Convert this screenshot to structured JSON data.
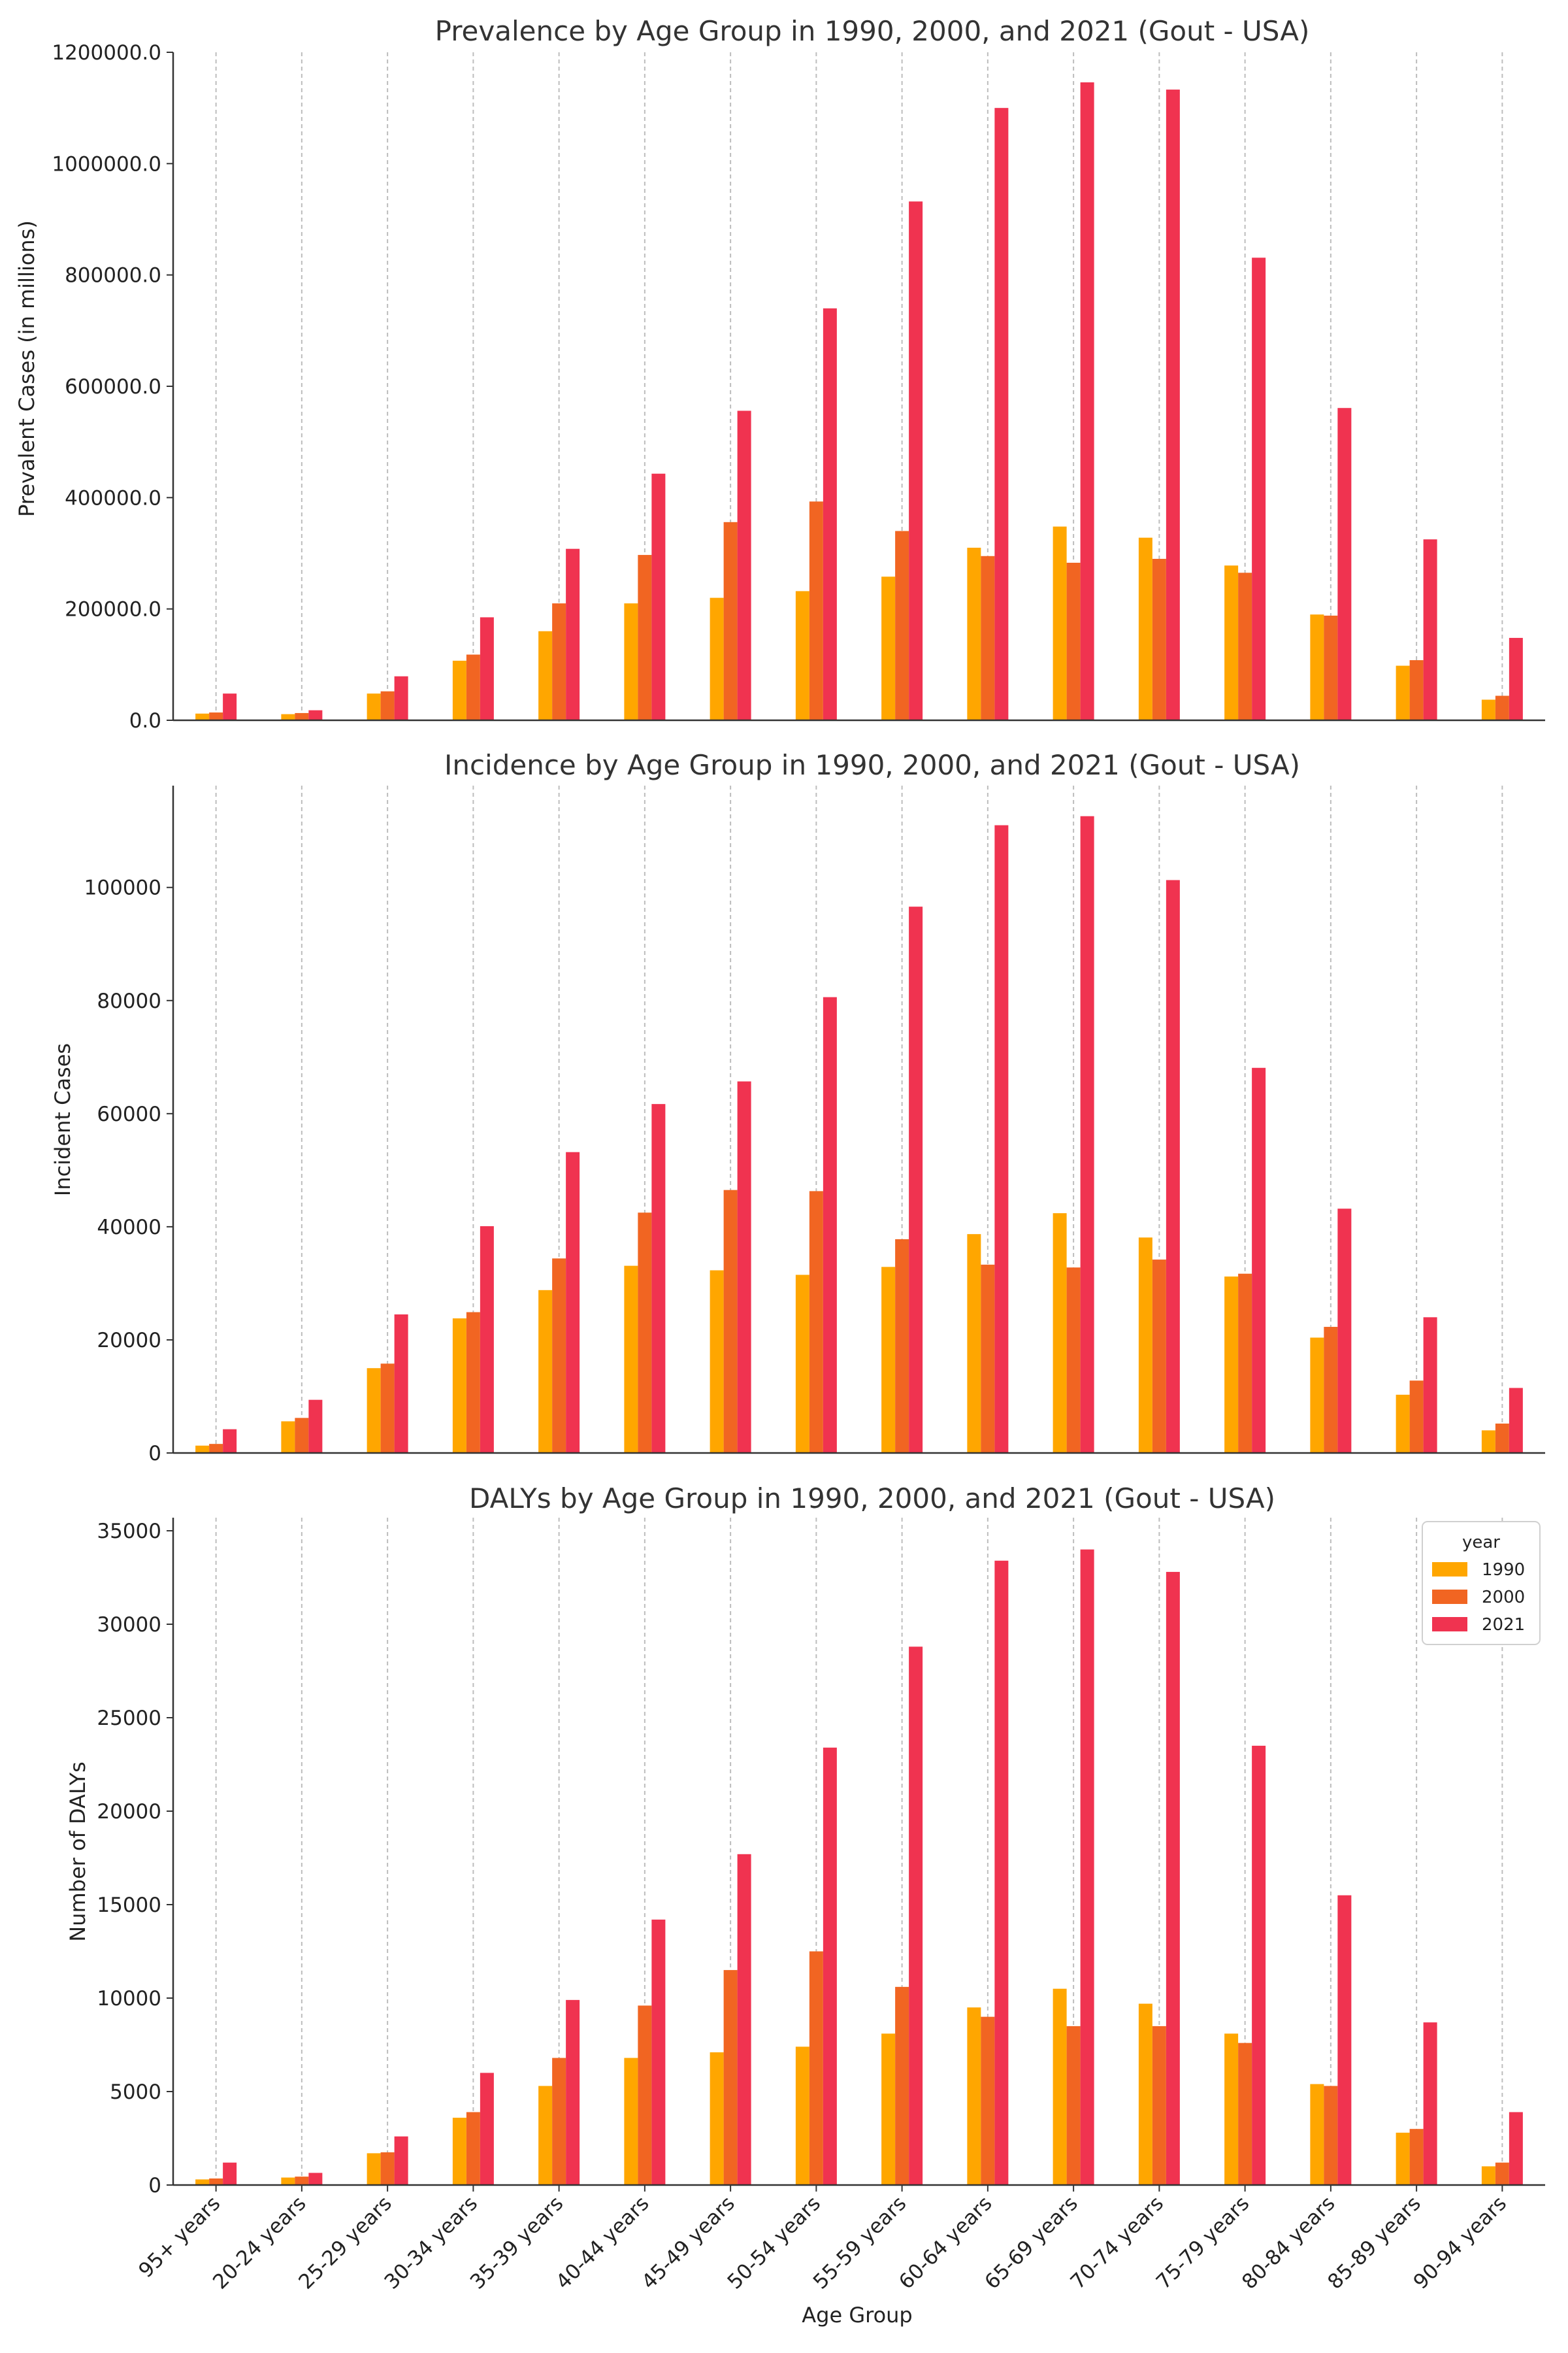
{
  "colors": {
    "1990": "#FFA600",
    "2000": "#F16522",
    "2021": "#F03350",
    "grid": "#BDBDBD",
    "axis": "#333333"
  },
  "xlabel": "Age Group",
  "legend": {
    "title": "year",
    "entries": [
      "1990",
      "2000",
      "2021"
    ]
  },
  "chart_data": [
    {
      "type": "bar",
      "title": "Prevalence by Age Group in 1990, 2000, and 2021 (Gout - USA)",
      "xlabel": "",
      "ylabel": "Prevalent Cases (in millions)",
      "ylim": [
        0,
        1200000
      ],
      "yticks": [
        0,
        200000,
        400000,
        600000,
        800000,
        1000000,
        1200000
      ],
      "tick_labels": [
        "0.0",
        "200000.0",
        "400000.0",
        "600000.0",
        "800000.0",
        "1000000.0",
        "1200000.0"
      ],
      "categories": [
        "95+ years",
        "20-24 years",
        "25-29 years",
        "30-34 years",
        "35-39 years",
        "40-44 years",
        "45-49 years",
        "50-54 years",
        "55-59 years",
        "60-64 years",
        "65-69 years",
        "70-74 years",
        "75-79 years",
        "80-84 years",
        "85-89 years",
        "90-94 years"
      ],
      "series": [
        {
          "name": "1990",
          "values": [
            12000,
            11000,
            48000,
            107000,
            160000,
            210000,
            220000,
            232000,
            258000,
            310000,
            348000,
            328000,
            278000,
            190000,
            98000,
            37000
          ]
        },
        {
          "name": "2000",
          "values": [
            14000,
            13000,
            52000,
            118000,
            210000,
            297000,
            356000,
            393000,
            340000,
            295000,
            283000,
            290000,
            265000,
            188000,
            108000,
            44000
          ]
        },
        {
          "name": "2021",
          "values": [
            48000,
            18000,
            79000,
            185000,
            308000,
            443000,
            556000,
            740000,
            932000,
            1100000,
            1146000,
            1133000,
            831000,
            561000,
            325000,
            148000
          ]
        }
      ]
    },
    {
      "type": "bar",
      "title": "Incidence by Age Group in 1990, 2000, and 2021 (Gout - USA)",
      "xlabel": "",
      "ylabel": "Incident Cases",
      "ylim": [
        0,
        118000
      ],
      "yticks": [
        0,
        20000,
        40000,
        60000,
        80000,
        100000
      ],
      "tick_labels": [
        "0",
        "20000",
        "40000",
        "60000",
        "80000",
        "100000"
      ],
      "categories": [
        "95+ years",
        "20-24 years",
        "25-29 years",
        "30-34 years",
        "35-39 years",
        "40-44 years",
        "45-49 years",
        "50-54 years",
        "55-59 years",
        "60-64 years",
        "65-69 years",
        "70-74 years",
        "75-79 years",
        "80-84 years",
        "85-89 years",
        "90-94 years"
      ],
      "series": [
        {
          "name": "1990",
          "values": [
            1300,
            5600,
            15000,
            23800,
            28800,
            33100,
            32300,
            31500,
            32900,
            38700,
            42400,
            38100,
            31200,
            20400,
            10300,
            4000
          ]
        },
        {
          "name": "2000",
          "values": [
            1600,
            6200,
            15800,
            24900,
            34400,
            42500,
            46500,
            46300,
            37800,
            33300,
            32800,
            34200,
            31700,
            22300,
            12800,
            5200
          ]
        },
        {
          "name": "2021",
          "values": [
            4200,
            9400,
            24500,
            40100,
            53200,
            61700,
            65700,
            80600,
            96600,
            111000,
            112600,
            101300,
            68100,
            43200,
            24000,
            11500
          ]
        }
      ]
    },
    {
      "type": "bar",
      "title": "DALYs by Age Group in 1990, 2000, and 2021 (Gout - USA)",
      "xlabel": "Age Group",
      "ylabel": "Number of DALYs",
      "ylim": [
        0,
        35700
      ],
      "yticks": [
        0,
        5000,
        10000,
        15000,
        20000,
        25000,
        30000,
        35000
      ],
      "tick_labels": [
        "0",
        "5000",
        "10000",
        "15000",
        "20000",
        "25000",
        "30000",
        "35000"
      ],
      "categories": [
        "95+ years",
        "20-24 years",
        "25-29 years",
        "30-34 years",
        "35-39 years",
        "40-44 years",
        "45-49 years",
        "50-54 years",
        "55-59 years",
        "60-64 years",
        "65-69 years",
        "70-74 years",
        "75-79 years",
        "80-84 years",
        "85-89 years",
        "90-94 years"
      ],
      "series": [
        {
          "name": "1990",
          "values": [
            300,
            400,
            1700,
            3600,
            5300,
            6800,
            7100,
            7400,
            8100,
            9500,
            10500,
            9700,
            8100,
            5400,
            2800,
            1000
          ]
        },
        {
          "name": "2000",
          "values": [
            350,
            450,
            1750,
            3900,
            6800,
            9600,
            11500,
            12500,
            10600,
            9000,
            8500,
            8500,
            7600,
            5300,
            3000,
            1200
          ]
        },
        {
          "name": "2021",
          "values": [
            1200,
            650,
            2600,
            6000,
            9900,
            14200,
            17700,
            23400,
            28800,
            33400,
            34000,
            32800,
            23500,
            15500,
            8700,
            3900
          ]
        }
      ]
    }
  ]
}
